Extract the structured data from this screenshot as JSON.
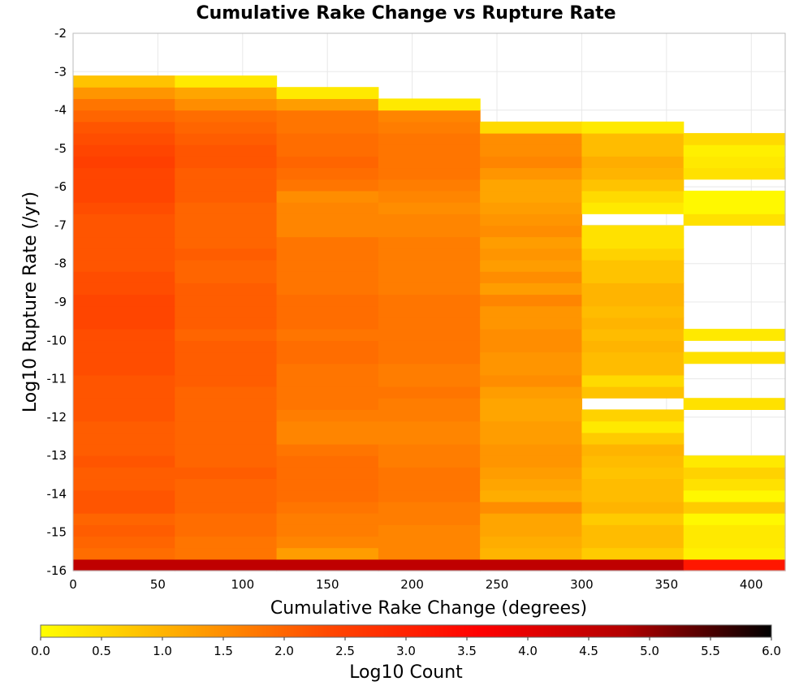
{
  "chart_data": {
    "type": "heatmap",
    "title": "Cumulative Rake Change vs Rupture Rate",
    "xlabel": "Cumulative Rake Change (degrees)",
    "ylabel": "Log10 Rupture Rate (/yr)",
    "xlim": [
      0,
      420
    ],
    "ylim": [
      -16,
      -2
    ],
    "x_ticks": [
      0,
      50,
      100,
      150,
      200,
      250,
      300,
      350,
      400
    ],
    "y_ticks": [
      -16,
      -15,
      -14,
      -13,
      -12,
      -11,
      -10,
      -9,
      -8,
      -7,
      -6,
      -5,
      -4,
      -3,
      -2
    ],
    "grid": true,
    "x_bin_edges": [
      0,
      60,
      120,
      180,
      240,
      300,
      360,
      420
    ],
    "y_bin_edges": [
      -16,
      -15.7,
      -15.4,
      -15.1,
      -14.8,
      -14.5,
      -14.2,
      -13.9,
      -13.6,
      -13.3,
      -13.0,
      -12.7,
      -12.4,
      -12.1,
      -11.8,
      -11.5,
      -11.2,
      -10.9,
      -10.6,
      -10.3,
      -10.0,
      -9.7,
      -9.4,
      -9.1,
      -8.8,
      -8.5,
      -8.2,
      -7.9,
      -7.6,
      -7.3,
      -7.0,
      -6.7,
      -6.4,
      -6.1,
      -5.8,
      -5.5,
      -5.2,
      -4.9,
      -4.6,
      -4.3,
      -4.0,
      -3.7,
      -3.4,
      -3.1
    ],
    "bottom_row_label": "",
    "colorbar": {
      "label": "Log10 Count",
      "min": 0.0,
      "max": 6.0,
      "ticks": [
        "0.0",
        "0.5",
        "1.0",
        "1.5",
        "2.0",
        "2.5",
        "3.0",
        "3.5",
        "4.0",
        "4.5",
        "5.0",
        "5.5",
        "6.0"
      ],
      "colors": [
        "#ffff00",
        "#ffa500",
        "#ff4500",
        "#ff0000",
        "#b20000",
        "#000000"
      ]
    },
    "values_note_columns": "rows listed bottom to top, null = empty",
    "values": [
      [
        4.6,
        4.6,
        4.6,
        4.6,
        4.6,
        4.6,
        3.2
      ],
      [
        1.9,
        1.8,
        1.3,
        1.6,
        1.0,
        0.7,
        0.2
      ],
      [
        2.0,
        1.8,
        1.6,
        1.6,
        1.1,
        0.9,
        0.3
      ],
      [
        2.1,
        1.9,
        1.7,
        1.6,
        1.2,
        0.9,
        0.3
      ],
      [
        2.0,
        1.9,
        1.7,
        1.7,
        1.2,
        0.7,
        0.1
      ],
      [
        2.2,
        2.0,
        1.8,
        1.7,
        1.5,
        1.0,
        0.7
      ],
      [
        2.2,
        2.0,
        1.9,
        1.8,
        1.1,
        0.9,
        0.1
      ],
      [
        2.1,
        2.0,
        1.9,
        1.8,
        1.2,
        0.9,
        0.4
      ],
      [
        2.1,
        2.1,
        1.9,
        1.8,
        1.3,
        0.8,
        0.6
      ],
      [
        2.2,
        2.0,
        1.9,
        1.7,
        1.4,
        0.9,
        0.3
      ],
      [
        2.1,
        2.0,
        1.8,
        1.7,
        1.4,
        1.0,
        null
      ],
      [
        2.1,
        2.0,
        1.6,
        1.6,
        1.3,
        0.7,
        null
      ],
      [
        2.1,
        2.0,
        1.6,
        1.6,
        1.3,
        0.3,
        null
      ],
      [
        2.2,
        2.0,
        1.7,
        1.7,
        1.2,
        0.6,
        null
      ],
      [
        2.2,
        2.0,
        1.8,
        1.7,
        1.2,
        null,
        0.4
      ],
      [
        2.2,
        2.0,
        1.8,
        1.8,
        1.3,
        0.8,
        null
      ],
      [
        2.2,
        2.1,
        1.8,
        1.7,
        1.5,
        0.5,
        null
      ],
      [
        2.3,
        2.1,
        1.8,
        1.7,
        1.4,
        0.9,
        null
      ],
      [
        2.3,
        2.1,
        1.9,
        1.8,
        1.4,
        0.9,
        0.4
      ],
      [
        2.3,
        2.1,
        1.9,
        1.8,
        1.5,
        1.0,
        null
      ],
      [
        2.3,
        2.0,
        1.8,
        1.8,
        1.5,
        0.9,
        0.3
      ],
      [
        2.4,
        2.1,
        1.9,
        1.8,
        1.4,
        1.0,
        null
      ],
      [
        2.4,
        2.1,
        1.9,
        1.8,
        1.4,
        0.9,
        null
      ],
      [
        2.4,
        2.1,
        1.9,
        1.8,
        1.6,
        1.0,
        null
      ],
      [
        2.3,
        2.1,
        1.8,
        1.7,
        1.3,
        1.0,
        null
      ],
      [
        2.3,
        2.0,
        1.8,
        1.7,
        1.5,
        0.8,
        null
      ],
      [
        2.2,
        2.0,
        1.8,
        1.7,
        1.3,
        0.8,
        null
      ],
      [
        2.2,
        2.1,
        1.8,
        1.7,
        1.4,
        0.6,
        null
      ],
      [
        2.2,
        2.0,
        1.8,
        1.7,
        1.3,
        0.4,
        null
      ],
      [
        2.2,
        2.0,
        1.6,
        1.6,
        1.5,
        0.4,
        null
      ],
      [
        2.2,
        2.0,
        1.6,
        1.6,
        1.4,
        null,
        0.4
      ],
      [
        2.3,
        2.0,
        1.6,
        1.5,
        1.3,
        0.3,
        0.1
      ],
      [
        2.4,
        2.1,
        1.5,
        1.6,
        1.2,
        0.5,
        0.1
      ],
      [
        2.4,
        2.1,
        1.8,
        1.7,
        1.2,
        0.8,
        null
      ],
      [
        2.4,
        2.1,
        1.9,
        1.8,
        1.4,
        1.0,
        0.4
      ],
      [
        2.5,
        2.2,
        2.0,
        1.8,
        1.6,
        1.1,
        0.3
      ],
      [
        2.4,
        2.2,
        1.9,
        1.8,
        1.5,
        0.9,
        0.2
      ],
      [
        2.3,
        2.1,
        1.9,
        1.8,
        1.5,
        0.9,
        0.5
      ],
      [
        2.2,
        2.0,
        1.8,
        1.7,
        0.5,
        0.3,
        null
      ],
      [
        2.0,
        1.9,
        1.8,
        1.6,
        null,
        null,
        null
      ],
      [
        1.8,
        1.5,
        1.3,
        0.3,
        null,
        null,
        null
      ],
      [
        1.4,
        1.2,
        0.3,
        null,
        null,
        null,
        null
      ],
      [
        0.8,
        0.3,
        null,
        null,
        null,
        null,
        null
      ]
    ]
  }
}
